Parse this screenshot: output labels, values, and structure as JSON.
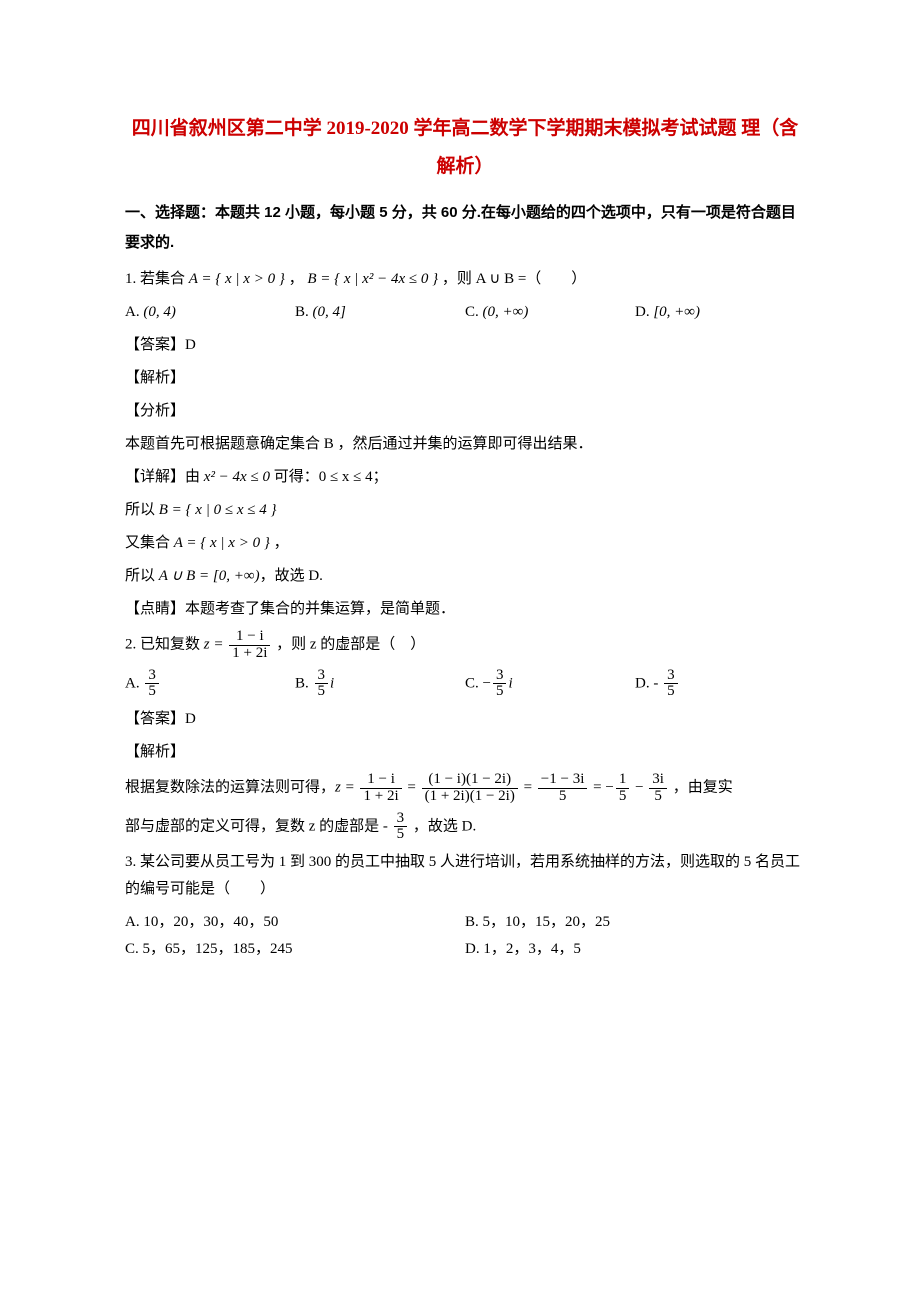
{
  "title": "四川省叙州区第二中学 2019-2020 学年高二数学下学期期末模拟考试试题 理（含解析）",
  "section1": {
    "header": "一、选择题：本题共 12 小题，每小题 5 分，共 60 分.在每小题给的四个选项中，只有一项是符合题目要求的."
  },
  "q1": {
    "stem_pre": "1. 若集合 ",
    "setA": "A = { x | x > 0 }",
    "sep": " ， ",
    "setB": "B = { x | x² − 4x ≤ 0 }",
    "stem_post": " ，则 A ∪ B =（　　）",
    "optA_label": "A. ",
    "optA": "(0, 4)",
    "optB_label": "B. ",
    "optB": "(0, 4]",
    "optC_label": "C. ",
    "optC": "(0, +∞)",
    "optD_label": "D. ",
    "optD": "[0, +∞)",
    "answer": "【答案】D",
    "jiexi": "【解析】",
    "fenxi": "【分析】",
    "fenxi_text": "本题首先可根据题意确定集合 B ，然后通过并集的运算即可得出结果．",
    "detail_label": "【详解】",
    "detail1_pre": "由 ",
    "detail1_mid": "x² − 4x ≤ 0",
    "detail1_post": " 可得：0 ≤ x ≤ 4；",
    "detail2_pre": "所以 ",
    "detail2": "B = { x | 0 ≤ x ≤ 4 }",
    "detail3_pre": "又集合 ",
    "detail3": "A = { x | x > 0 }",
    "detail3_post": " ，",
    "detail4_pre": "所以 ",
    "detail4": "A ∪ B = [0, +∞)",
    "detail4_post": "，故选 D.",
    "point": "【点睛】本题考查了集合的并集运算，是简单题．"
  },
  "q2": {
    "stem_pre": "2. 已知复数 ",
    "z_expr_num": "1 − i",
    "z_expr_den": "1 + 2i",
    "z_prefix": "z = ",
    "stem_post": " ，则 z 的虚部是（　）",
    "optA_label": "A. ",
    "optA_num": "3",
    "optA_den": "5",
    "optB_label": "B. ",
    "optB_num": "3",
    "optB_den": "5",
    "optB_suf": "i",
    "optC_label": "C. ",
    "optC_pre": "−",
    "optC_num": "3",
    "optC_den": "5",
    "optC_suf": "i",
    "optD_label": "D. ",
    "optD_pre": "- ",
    "optD_num": "3",
    "optD_den": "5",
    "answer": "【答案】D",
    "jiexi": "【解析】",
    "calc_pre": "根据复数除法的运算法则可得，",
    "calc_z": "z = ",
    "calc_f1_num": "1 − i",
    "calc_f1_den": "1 + 2i",
    "calc_eq1": " = ",
    "calc_f2_num": "(1 − i)(1 − 2i)",
    "calc_f2_den": "(1 + 2i)(1 − 2i)",
    "calc_eq2": " = ",
    "calc_f3_num": "−1 − 3i",
    "calc_f3_den": "5",
    "calc_eq3": " = −",
    "calc_f4_num": "1",
    "calc_f4_den": "5",
    "calc_eq4": " − ",
    "calc_f5_num": "3i",
    "calc_f5_den": "5",
    "calc_post": " ，由复实",
    "conclusion_pre": "部与虚部的定义可得，复数 z 的虚部是 - ",
    "conclusion_num": "3",
    "conclusion_den": "5",
    "conclusion_post": " ，故选 D."
  },
  "q3": {
    "stem": "3. 某公司要从员工号为 1 到 300 的员工中抽取 5 人进行培训，若用系统抽样的方法，则选取的 5 名员工的编号可能是（　　）",
    "optA_label": "A. ",
    "optA": "10，20，30，40，50",
    "optB_label": "B. ",
    "optB": "5，10，15，20，25",
    "optC_label": "C. ",
    "optC": "5，65，125，185，245",
    "optD_label": "D. ",
    "optD": "1，2，3，4，5"
  }
}
